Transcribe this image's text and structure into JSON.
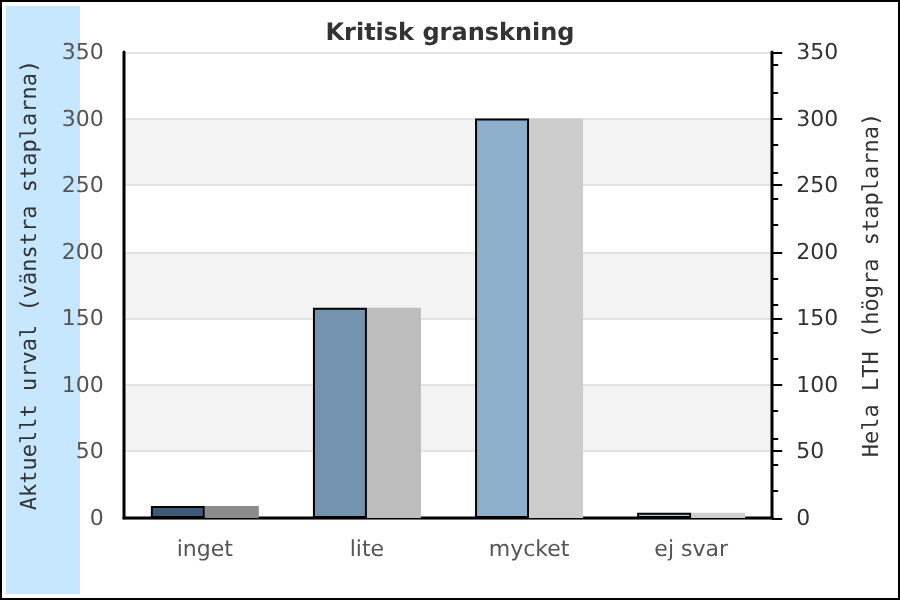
{
  "chart_data": {
    "type": "bar",
    "title": "Kritisk granskning",
    "ylabel": "Aktuellt urval (vänstra staplarna)",
    "y2label": "Hela LTH (högra staplarna)",
    "categories": [
      "inget",
      "lite",
      "mycket",
      "ej svar"
    ],
    "series": [
      {
        "colors": [
          "#3d5a78",
          "#7393ae",
          "#8fb0cc",
          "#a9c8e6"
        ],
        "values": [
          9,
          158,
          300,
          4
        ]
      },
      {
        "colors": [
          "#8c8c8c",
          "#bdbdbd",
          "#cccccc",
          "#cfcfcf"
        ],
        "values": [
          9,
          158,
          300,
          4
        ],
        "axis": "y2"
      }
    ],
    "ylim": [
      0,
      350
    ],
    "yticks": [
      0,
      50,
      100,
      150,
      200,
      250,
      300,
      350
    ],
    "y2lim": [
      0,
      350
    ],
    "y2ticks": [
      0,
      50,
      100,
      150,
      200,
      250,
      300,
      350
    ],
    "grid": "y"
  }
}
